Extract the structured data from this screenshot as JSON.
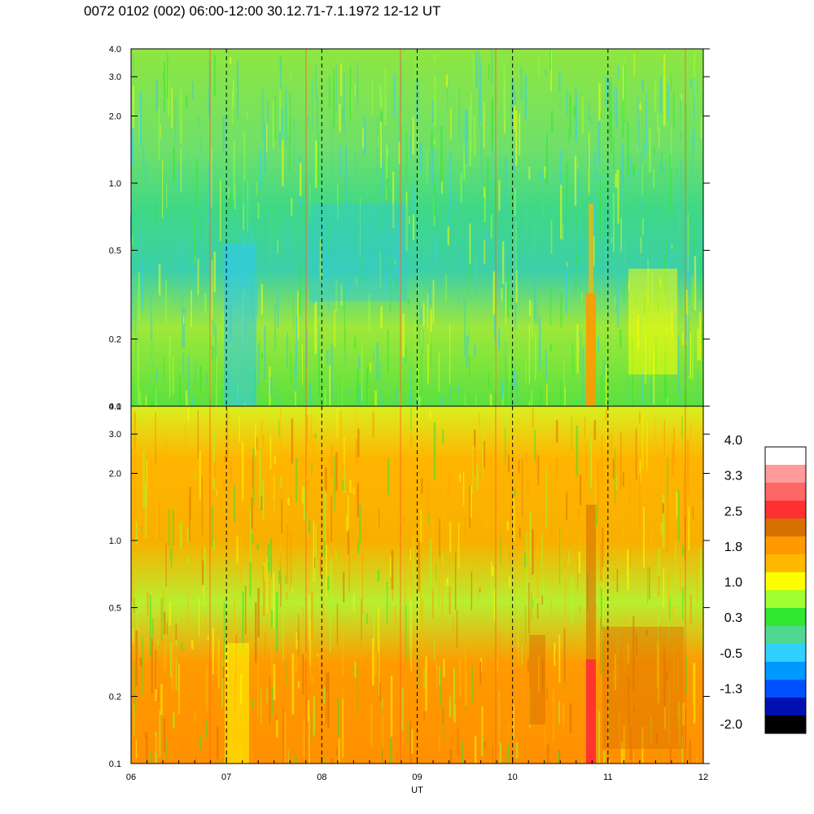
{
  "title": "0072 0102 (002) 06:00-12:00 30.12.71-7.1.1972  12-12 UT",
  "chart_data": {
    "type": "heatmap",
    "xlabel": "UT",
    "x_tick_labels": [
      "06",
      "07",
      "08",
      "09",
      "10",
      "11",
      "12"
    ],
    "x_range": [
      6,
      12
    ],
    "hour_markers": [
      7,
      8,
      9,
      10,
      11
    ],
    "panels": [
      {
        "y_scale": "log",
        "y_range": [
          0.1,
          4.0
        ],
        "y_tick_labels": [
          "4.0",
          "3.0",
          "2.0",
          "1.0",
          "0.5",
          "0.2",
          "0.1"
        ],
        "y_tick_values": [
          4.0,
          3.0,
          2.0,
          1.0,
          0.5,
          0.2,
          0.1
        ]
      },
      {
        "y_scale": "log",
        "y_range": [
          0.1,
          4.0
        ],
        "y_tick_labels": [
          "4.0",
          "3.0",
          "2.0",
          "1.0",
          "0.5",
          "0.2",
          "0.1"
        ],
        "y_tick_values": [
          4.0,
          3.0,
          2.0,
          1.0,
          0.5,
          0.2,
          0.1
        ]
      }
    ],
    "colorbar": {
      "range": [
        -2.0,
        4.0
      ],
      "tick_labels": [
        "4.0",
        "3.3",
        "2.5",
        "1.8",
        "1.0",
        "0.3",
        "-0.5",
        "-1.3",
        "-2.0"
      ],
      "colors_top_to_bottom": [
        "#ffffff",
        "#ff9b9b",
        "#ff6666",
        "#ff3030",
        "#d87000",
        "#ff9900",
        "#ffb800",
        "#ffff00",
        "#a0ff30",
        "#30e830",
        "#50d890",
        "#30d0ff",
        "#0099ff",
        "#0050ff",
        "#0010b0",
        "#000000"
      ]
    }
  }
}
